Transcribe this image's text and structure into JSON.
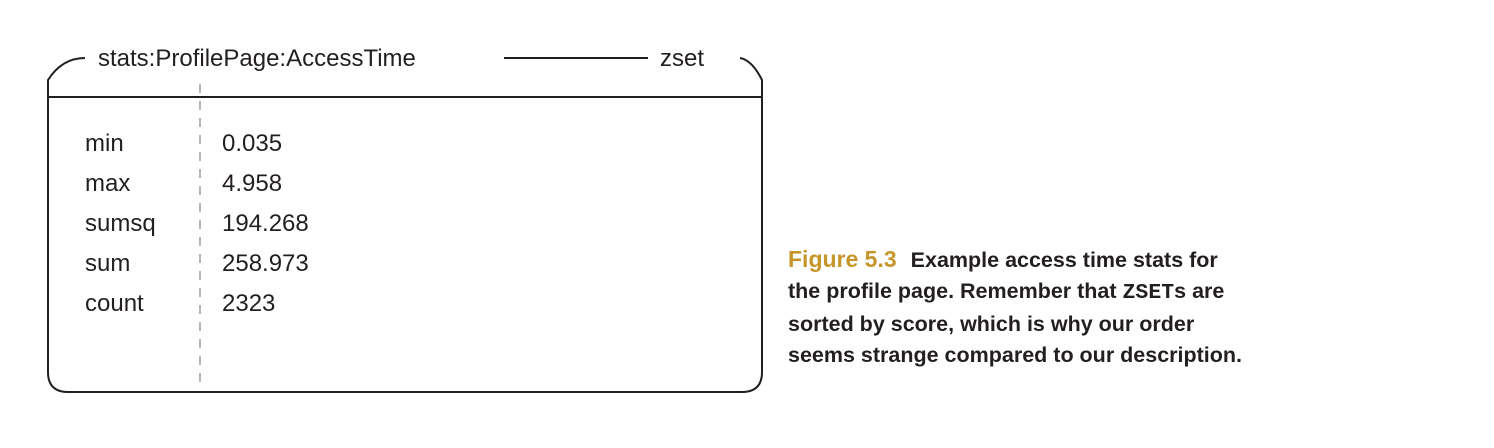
{
  "diagram": {
    "key_name": "stats:ProfilePage:AccessTime",
    "key_type": "zset",
    "rows": [
      {
        "member": "min",
        "score": "0.035"
      },
      {
        "member": "max",
        "score": "4.958"
      },
      {
        "member": "sumsq",
        "score": "194.268"
      },
      {
        "member": "sum",
        "score": "258.973"
      },
      {
        "member": "count",
        "score": "2323"
      }
    ]
  },
  "caption": {
    "label": "Figure 5.3",
    "text_before": "Example access time stats for the profile page. Remember that",
    "code": "ZSET",
    "text_after": "s are sorted by score, which is why our order seems strange compared to our description."
  },
  "colors": {
    "figure_label": "#c6962b",
    "text": "#231f20",
    "divider": "#9e9e9e"
  }
}
